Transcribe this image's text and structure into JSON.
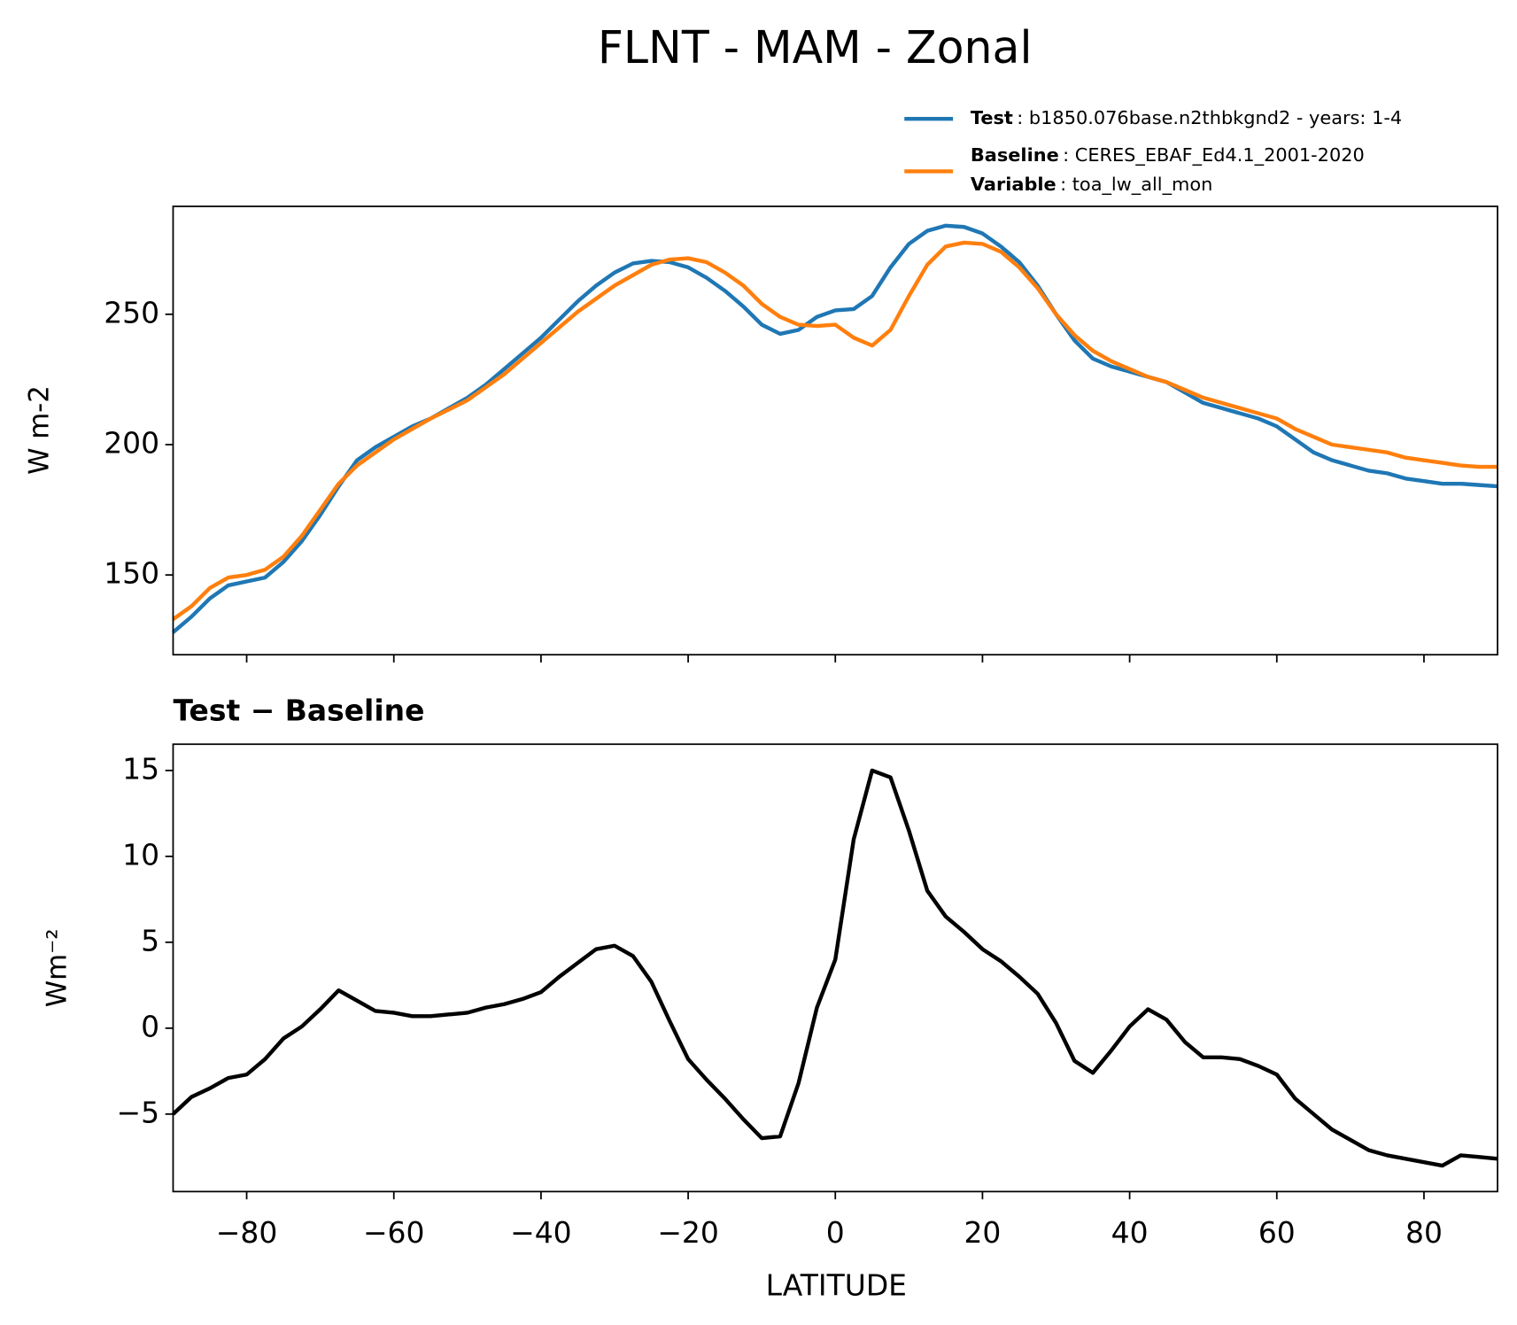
{
  "chart_data": [
    {
      "type": "line",
      "title": "FLNT - MAM - Zonal",
      "y_label": "W m-2",
      "x": [
        -90,
        -87.5,
        -85,
        -82.5,
        -80,
        -77.5,
        -75,
        -72.5,
        -70,
        -67.5,
        -65,
        -62.5,
        -60,
        -57.5,
        -55,
        -52.5,
        -50,
        -47.5,
        -45,
        -42.5,
        -40,
        -37.5,
        -35,
        -32.5,
        -30,
        -27.5,
        -25,
        -22.5,
        -20,
        -17.5,
        -15,
        -12.5,
        -10,
        -7.5,
        -5,
        -2.5,
        0,
        2.5,
        5,
        7.5,
        10,
        12.5,
        15,
        17.5,
        20,
        22.5,
        25,
        27.5,
        30,
        32.5,
        35,
        37.5,
        40,
        42.5,
        45,
        47.5,
        50,
        52.5,
        55,
        57.5,
        60,
        62.5,
        65,
        67.5,
        70,
        72.5,
        75,
        77.5,
        80,
        82.5,
        85,
        87.5,
        90
      ],
      "series": [
        {
          "name": "Test",
          "description": ": b1850.076base.n2thbkgnd2 - years: 1-4",
          "color": "#1f77b4",
          "values": [
            128,
            134,
            141,
            146,
            147.5,
            149,
            155,
            163,
            173,
            184,
            194,
            199,
            203,
            207,
            210,
            214,
            218,
            223,
            229,
            235,
            241,
            248,
            255,
            261,
            266,
            269.5,
            270.5,
            270,
            268,
            264,
            259,
            253,
            246,
            242.5,
            244,
            249,
            251.5,
            252,
            257,
            268,
            277,
            282,
            284,
            283.5,
            281,
            276,
            270,
            261,
            250,
            240,
            233,
            230,
            228,
            226,
            224,
            220,
            216,
            214,
            212,
            210,
            207,
            202,
            197,
            194,
            192,
            190,
            189,
            187,
            186,
            185,
            185,
            184.5,
            184
          ]
        },
        {
          "name": "Baseline",
          "description": ": CERES_EBAF_Ed4.1_2001-2020",
          "color": "#ff7f0e",
          "values": [
            133,
            138,
            145,
            149,
            150,
            152,
            157,
            165,
            175,
            185,
            192,
            197,
            202,
            206,
            210,
            213.5,
            217,
            222,
            227,
            233,
            239,
            245,
            251,
            256,
            261,
            265,
            269,
            271,
            271.5,
            270,
            266,
            261,
            254,
            249,
            246,
            245.5,
            246,
            241,
            238,
            244,
            257,
            269,
            276,
            277.5,
            277,
            274,
            268,
            260,
            250,
            242,
            236,
            232,
            229,
            226,
            224,
            221,
            218,
            216,
            214,
            212,
            210,
            206,
            203,
            200,
            199,
            198,
            197,
            195,
            194,
            193,
            192,
            191.5,
            191.5
          ]
        }
      ],
      "variable": {
        "name": "Variable",
        "description": ": toa_lw_all_mon"
      },
      "xlim": [
        -90,
        90
      ],
      "xticks": [
        -80,
        -60,
        -40,
        -20,
        0,
        20,
        40,
        60,
        80
      ],
      "ylim": [
        119.4,
        291.4
      ],
      "yticks": [
        150,
        200,
        250
      ]
    },
    {
      "type": "line",
      "title": "Test − Baseline",
      "y_label": "Wm⁻²",
      "x_label": "LATITUDE",
      "x": [
        -90,
        -87.5,
        -85,
        -82.5,
        -80,
        -77.5,
        -75,
        -72.5,
        -70,
        -67.5,
        -65,
        -62.5,
        -60,
        -57.5,
        -55,
        -52.5,
        -50,
        -47.5,
        -45,
        -42.5,
        -40,
        -37.5,
        -35,
        -32.5,
        -30,
        -27.5,
        -25,
        -22.5,
        -20,
        -17.5,
        -15,
        -12.5,
        -10,
        -7.5,
        -5,
        -2.5,
        0,
        2.5,
        5,
        7.5,
        10,
        12.5,
        15,
        17.5,
        20,
        22.5,
        25,
        27.5,
        30,
        32.5,
        35,
        37.5,
        40,
        42.5,
        45,
        47.5,
        50,
        52.5,
        55,
        57.5,
        60,
        62.5,
        65,
        67.5,
        70,
        72.5,
        75,
        77.5,
        80,
        82.5,
        85,
        87.5,
        90
      ],
      "series": [
        {
          "color": "#000000",
          "values": [
            -5,
            -4,
            -3.5,
            -2.9,
            -2.7,
            -1.8,
            -0.6,
            0.1,
            1.1,
            2.2,
            1.6,
            1.0,
            0.9,
            0.7,
            0.7,
            0.8,
            0.9,
            1.2,
            1.4,
            1.7,
            2.1,
            3.0,
            3.8,
            4.6,
            4.8,
            4.2,
            2.7,
            0.4,
            -1.8,
            -3.0,
            -4.1,
            -5.3,
            -6.4,
            -6.3,
            -3.2,
            1.2,
            4.0,
            11.0,
            15.0,
            14.6,
            11.5,
            8.0,
            6.5,
            5.6,
            4.6,
            3.9,
            3.0,
            2.0,
            0.3,
            -1.9,
            -2.6,
            -1.3,
            0.1,
            1.1,
            0.5,
            -0.8,
            -1.7,
            -1.7,
            -1.8,
            -2.2,
            -2.7,
            -4.1,
            -5.0,
            -5.9,
            -6.5,
            -7.1,
            -7.4,
            -7.6,
            -7.8,
            -8.0,
            -7.4,
            -7.5,
            -7.6
          ]
        }
      ],
      "xlim": [
        -90,
        90
      ],
      "xticks": [
        {
          "value": -80,
          "label": "−80"
        },
        {
          "value": -60,
          "label": "−60"
        },
        {
          "value": -40,
          "label": "−40"
        },
        {
          "value": -20,
          "label": "−20"
        },
        0,
        20,
        40,
        60,
        80
      ],
      "ylim": [
        -9.51,
        16.53
      ],
      "yticks": [
        {
          "value": -5,
          "label": "−5"
        },
        0,
        5,
        10,
        15
      ]
    }
  ]
}
